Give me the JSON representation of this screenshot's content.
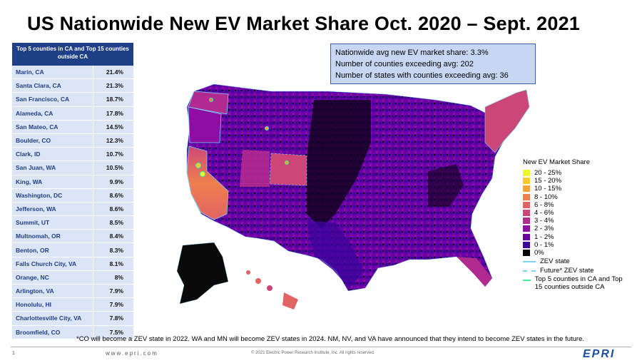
{
  "title": "US Nationwide New EV Market Share Oct. 2020 – Sept. 2021",
  "table": {
    "header": "Top 5 counties in CA and Top 15 counties outside CA",
    "rows": [
      {
        "county": "Marin, CA",
        "share": "21.4%"
      },
      {
        "county": "Santa Clara, CA",
        "share": "21.3%"
      },
      {
        "county": "San Francisco, CA",
        "share": "18.7%"
      },
      {
        "county": "Alameda, CA",
        "share": "17.8%"
      },
      {
        "county": "San Mateo, CA",
        "share": "14.5%"
      },
      {
        "county": "Boulder, CO",
        "share": "12.3%"
      },
      {
        "county": "Clark, ID",
        "share": "10.7%"
      },
      {
        "county": "San Juan, WA",
        "share": "10.5%"
      },
      {
        "county": "King, WA",
        "share": "9.9%"
      },
      {
        "county": "Washington, DC",
        "share": "8.6%"
      },
      {
        "county": "Jefferson, WA",
        "share": "8.6%"
      },
      {
        "county": "Summit, UT",
        "share": "8.5%"
      },
      {
        "county": "Multnomah, OR",
        "share": "8.4%"
      },
      {
        "county": "Benton, OR",
        "share": "8.3%"
      },
      {
        "county": "Falls Church City, VA",
        "share": "8.1%"
      },
      {
        "county": "Orange, NC",
        "share": "8%"
      },
      {
        "county": "Arlington, VA",
        "share": "7.9%"
      },
      {
        "county": "Honolulu, HI",
        "share": "7.9%"
      },
      {
        "county": "Charlottesville City, VA",
        "share": "7.8%"
      },
      {
        "county": "Broomfield, CO",
        "share": "7.5%"
      }
    ]
  },
  "info": {
    "line1": "Nationwide avg new EV market share: 3.3%",
    "line2": "Number of counties exceeding avg: 202",
    "line3": "Number of states with counties exceeding avg: 36"
  },
  "legend": {
    "title": "New EV Market Share",
    "bins": [
      {
        "label": "20 - 25%",
        "color": "#f0f921"
      },
      {
        "label": "15 - 20%",
        "color": "#fdc926"
      },
      {
        "label": "10 - 15%",
        "color": "#fba238"
      },
      {
        "label": "8 - 10%",
        "color": "#f07f4f"
      },
      {
        "label": "6 - 8%",
        "color": "#e16462"
      },
      {
        "label": "4 - 6%",
        "color": "#cc4778"
      },
      {
        "label": "3 - 4%",
        "color": "#b12a90"
      },
      {
        "label": "2 - 3%",
        "color": "#8f0da4"
      },
      {
        "label": "1 - 2%",
        "color": "#6a00a8"
      },
      {
        "label": "0 - 1%",
        "color": "#3d049b"
      },
      {
        "label": "0%",
        "color": "#000000"
      }
    ],
    "line_items": [
      {
        "label": "ZEV state",
        "color": "#7fd3f7",
        "style": "solid"
      },
      {
        "label": "Future* ZEV state",
        "color": "#7fd3f7",
        "style": "dashed"
      },
      {
        "label": "Top 5 counties in CA and Top 15 counties outside CA",
        "color": "#3cf2a0",
        "style": "solid"
      }
    ]
  },
  "footnote": "*CO will become a ZEV state in 2022. WA and MN will become ZEV states in 2024. NM, NV, and VA have announced that they intend to become ZEV states in the future.",
  "footer": {
    "page": "1",
    "website": "www.epri.com",
    "copyright": "© 2021 Electric Power Research Institute, Inc. All rights reserved.",
    "logo": "EPRI"
  }
}
